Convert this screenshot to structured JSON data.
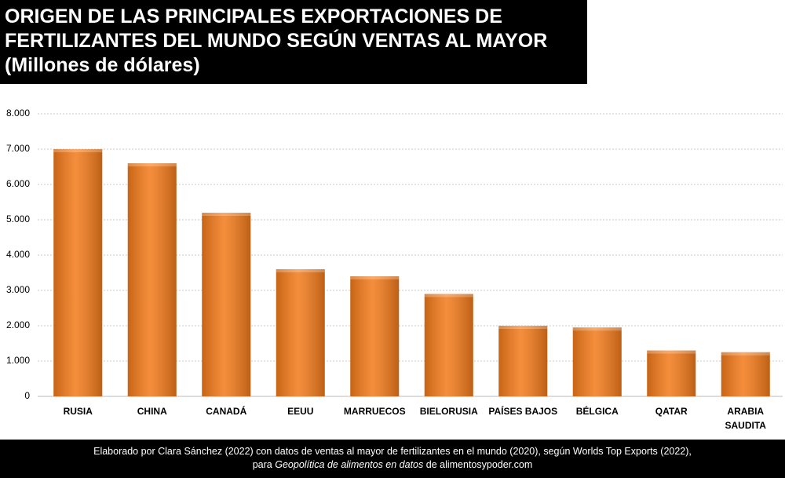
{
  "chart_data": {
    "type": "bar",
    "title": "ORIGEN DE LAS PRINCIPALES EXPORTACIONES DE FERTILIZANTES DEL MUNDO SEGÚN VENTAS AL MAYOR",
    "subtitle": "(Millones de dólares)",
    "categories": [
      "RUSIA",
      "CHINA",
      "CANADÁ",
      "EEUU",
      "MARRUECOS",
      "BIELORUSIA",
      "PAÍSES BAJOS",
      "BÉLGICA",
      "QATAR",
      "ARABIA SAUDITA"
    ],
    "values": [
      7000,
      6600,
      5200,
      3600,
      3400,
      2900,
      2000,
      1950,
      1300,
      1250
    ],
    "color": "#f27a1a",
    "ylim": [
      0,
      8000
    ],
    "yticks": [
      0,
      {
        "value": 1000,
        "label": "1.000"
      },
      {
        "value": 2000,
        "label": "2.000"
      },
      {
        "value": 3000,
        "label": "3.000"
      },
      {
        "value": 4000,
        "label": "4.000"
      },
      {
        "value": 5000,
        "label": "5.000"
      },
      {
        "value": 6000,
        "label": "6.000"
      },
      {
        "value": 7000,
        "label": "7.000"
      },
      {
        "value": 8000,
        "label": "8.000"
      }
    ],
    "grid": true,
    "source": [
      "Elaborado por Clara Sánchez (2022) con datos de ventas al mayor de fertilizantes en el mundo (2020), según Worlds Top Exports (2022),",
      "para",
      "Geopolítica de alimentos en datos",
      "de alimentosypoder.com"
    ]
  }
}
